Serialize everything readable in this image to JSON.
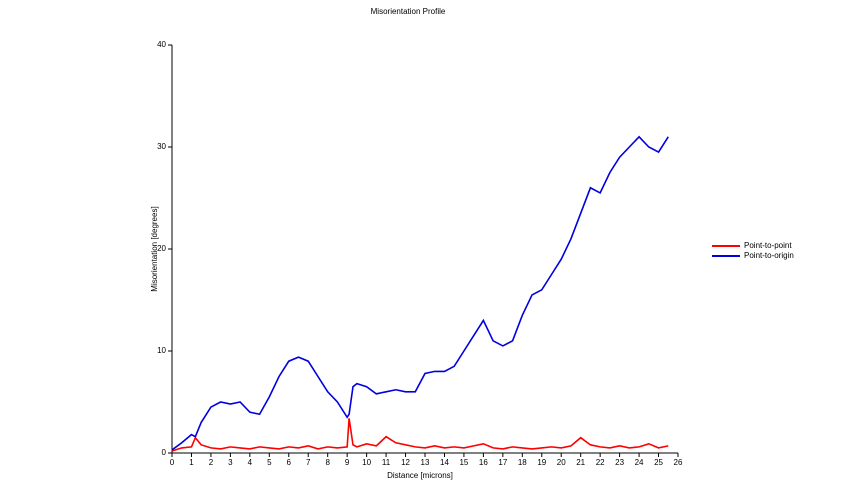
{
  "chart_data": {
    "type": "line",
    "title": "Misorientation Profile",
    "x_label": "Distance [microns]",
    "y_label": "Misorientation [degrees]",
    "x": [
      0,
      0.5,
      1,
      1.2,
      1.5,
      2,
      2.5,
      3,
      3.5,
      4,
      4.5,
      5,
      5.5,
      6,
      6.5,
      7,
      7.5,
      8,
      8.5,
      9,
      9.1,
      9.3,
      9.5,
      10,
      10.5,
      11,
      11.5,
      12,
      12.5,
      13,
      13.5,
      14,
      14.5,
      15,
      15.5,
      16,
      16.5,
      17,
      17.5,
      18,
      18.5,
      19,
      19.5,
      20,
      20.5,
      21,
      21.5,
      22,
      22.5,
      23,
      23.5,
      24,
      24.5,
      25,
      25.5
    ],
    "series": [
      {
        "name": "Point-to-point",
        "color": "#ff0000",
        "values": [
          0.2,
          0.5,
          0.6,
          1.5,
          0.8,
          0.5,
          0.4,
          0.6,
          0.5,
          0.4,
          0.6,
          0.5,
          0.4,
          0.6,
          0.5,
          0.7,
          0.4,
          0.6,
          0.5,
          0.6,
          3.4,
          0.8,
          0.6,
          0.9,
          0.7,
          1.6,
          1.0,
          0.8,
          0.6,
          0.5,
          0.7,
          0.5,
          0.6,
          0.5,
          0.7,
          0.9,
          0.5,
          0.4,
          0.6,
          0.5,
          0.4,
          0.5,
          0.6,
          0.5,
          0.7,
          1.5,
          0.8,
          0.6,
          0.5,
          0.7,
          0.5,
          0.6,
          0.9,
          0.5,
          0.7
        ]
      },
      {
        "name": "Point-to-origin",
        "color": "#0000e0",
        "values": [
          0.3,
          1.0,
          1.8,
          1.6,
          3.0,
          4.5,
          5.0,
          4.8,
          5.0,
          4.0,
          3.8,
          5.5,
          7.5,
          9.0,
          9.4,
          9.0,
          7.5,
          6.0,
          5.0,
          3.5,
          3.8,
          6.5,
          6.8,
          6.5,
          5.8,
          6.0,
          6.2,
          6.0,
          6.0,
          7.8,
          8.0,
          8.0,
          8.5,
          10.0,
          11.5,
          13.0,
          11.0,
          10.5,
          11.0,
          13.5,
          15.5,
          16.0,
          17.5,
          19.0,
          21.0,
          23.5,
          26.0,
          25.5,
          27.5,
          29.0,
          30.0,
          31.0,
          30.0,
          29.5,
          31.0
        ]
      }
    ],
    "xlim": [
      0,
      26
    ],
    "xticks": [
      0,
      1,
      2,
      3,
      4,
      5,
      6,
      7,
      8,
      9,
      10,
      11,
      12,
      13,
      14,
      15,
      16,
      17,
      18,
      19,
      20,
      21,
      22,
      23,
      24,
      25,
      26
    ],
    "ylim": [
      0,
      40
    ],
    "yticks": [
      0,
      10,
      20,
      30,
      40
    ],
    "grid": false,
    "legend": "right"
  }
}
